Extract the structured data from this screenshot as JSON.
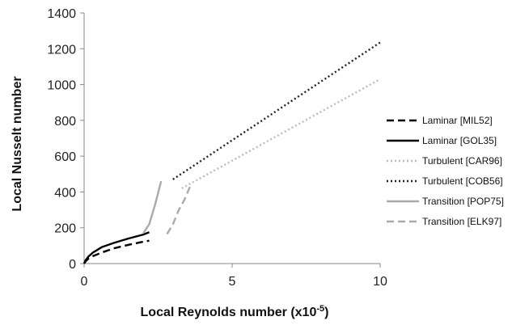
{
  "chart_data": {
    "type": "line",
    "xlabel": "Local Reynolds number (x10",
    "xlabel_sup": "-5",
    "xlabel_end": ")",
    "ylabel": "Local Nusselt number",
    "xlim": [
      0,
      10
    ],
    "ylim": [
      0,
      1400
    ],
    "xticks": [
      "0",
      "5",
      "10"
    ],
    "yticks": [
      "0",
      "200",
      "400",
      "600",
      "800",
      "1000",
      "1200",
      "1400"
    ],
    "grid": false,
    "legend": "right",
    "series": [
      {
        "name": "Laminar [MIL52]",
        "color": "#000000",
        "dash": "dashed",
        "points": [
          [
            0,
            0
          ],
          [
            0.05,
            12
          ],
          [
            0.15,
            28
          ],
          [
            0.3,
            42
          ],
          [
            0.6,
            62
          ],
          [
            1.0,
            85
          ],
          [
            1.5,
            105
          ],
          [
            2.0,
            122
          ],
          [
            2.2,
            128
          ]
        ]
      },
      {
        "name": "Laminar [GOL35]",
        "color": "#000000",
        "dash": "solid",
        "points": [
          [
            0,
            0
          ],
          [
            0.05,
            18
          ],
          [
            0.15,
            40
          ],
          [
            0.3,
            62
          ],
          [
            0.6,
            92
          ],
          [
            1.0,
            115
          ],
          [
            1.5,
            140
          ],
          [
            2.0,
            162
          ],
          [
            2.2,
            175
          ]
        ]
      },
      {
        "name": "Turbulent [CAR96]",
        "color": "#bbbbbb",
        "dash": "dotted",
        "points": [
          [
            3.3,
            420
          ],
          [
            10,
            1030
          ]
        ]
      },
      {
        "name": "Turbulent [COB56]",
        "color": "#222222",
        "dash": "dotted",
        "points": [
          [
            3.0,
            470
          ],
          [
            10,
            1235
          ]
        ]
      },
      {
        "name": "Transition [POP75]",
        "color": "#aaaaaa",
        "dash": "solid",
        "points": [
          [
            2.0,
            170
          ],
          [
            2.2,
            220
          ],
          [
            2.4,
            330
          ],
          [
            2.6,
            460
          ]
        ]
      },
      {
        "name": "Transition [ELK97]",
        "color": "#aaaaaa",
        "dash": "dashed",
        "points": [
          [
            2.8,
            165
          ],
          [
            3.0,
            220
          ],
          [
            3.2,
            300
          ],
          [
            3.4,
            360
          ],
          [
            3.6,
            440
          ]
        ]
      }
    ]
  }
}
